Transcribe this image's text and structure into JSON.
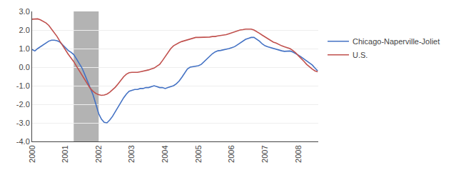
{
  "chart_data": {
    "type": "line",
    "x": [
      2000.0,
      2000.083,
      2000.167,
      2000.25,
      2000.333,
      2000.417,
      2000.5,
      2000.583,
      2000.667,
      2000.75,
      2000.833,
      2000.917,
      2001.0,
      2001.083,
      2001.167,
      2001.25,
      2001.333,
      2001.417,
      2001.5,
      2001.583,
      2001.667,
      2001.75,
      2001.833,
      2001.917,
      2002.0,
      2002.083,
      2002.167,
      2002.25,
      2002.333,
      2002.417,
      2002.5,
      2002.583,
      2002.667,
      2002.75,
      2002.833,
      2002.917,
      2003.0,
      2003.083,
      2003.167,
      2003.25,
      2003.333,
      2003.417,
      2003.5,
      2003.583,
      2003.667,
      2003.75,
      2003.833,
      2003.917,
      2004.0,
      2004.083,
      2004.167,
      2004.25,
      2004.333,
      2004.417,
      2004.5,
      2004.583,
      2004.667,
      2004.75,
      2004.833,
      2004.917,
      2005.0,
      2005.083,
      2005.167,
      2005.25,
      2005.333,
      2005.417,
      2005.5,
      2005.583,
      2005.667,
      2005.75,
      2005.833,
      2005.917,
      2006.0,
      2006.083,
      2006.167,
      2006.25,
      2006.333,
      2006.417,
      2006.5,
      2006.583,
      2006.667,
      2006.75,
      2006.833,
      2006.917,
      2007.0,
      2007.083,
      2007.167,
      2007.25,
      2007.333,
      2007.417,
      2007.5,
      2007.583,
      2007.667,
      2007.75,
      2007.833,
      2007.917,
      2008.0,
      2008.083,
      2008.167,
      2008.25,
      2008.333,
      2008.417,
      2008.5,
      2008.583
    ],
    "series": [
      {
        "name": "Chicago-Naperville-Joliet",
        "color": "#4472C4",
        "values": [
          0.95,
          0.87,
          1.0,
          1.1,
          1.2,
          1.3,
          1.4,
          1.45,
          1.45,
          1.42,
          1.35,
          1.2,
          1.05,
          0.9,
          0.8,
          0.68,
          0.45,
          0.2,
          -0.05,
          -0.4,
          -0.75,
          -1.1,
          -1.5,
          -2.0,
          -2.5,
          -2.8,
          -2.97,
          -3.0,
          -2.85,
          -2.65,
          -2.4,
          -2.1,
          -1.85,
          -1.65,
          -1.45,
          -1.3,
          -1.25,
          -1.2,
          -1.2,
          -1.15,
          -1.15,
          -1.1,
          -1.1,
          -1.05,
          -1.0,
          -1.05,
          -1.1,
          -1.1,
          -1.15,
          -1.1,
          -1.05,
          -1.0,
          -0.9,
          -0.75,
          -0.55,
          -0.3,
          -0.1,
          0.0,
          0.02,
          0.05,
          0.08,
          0.15,
          0.3,
          0.45,
          0.6,
          0.72,
          0.82,
          0.88,
          0.9,
          0.93,
          0.95,
          1.0,
          1.05,
          1.1,
          1.2,
          1.3,
          1.4,
          1.5,
          1.55,
          1.6,
          1.6,
          1.5,
          1.4,
          1.25,
          1.15,
          1.1,
          1.05,
          1.0,
          0.95,
          0.9,
          0.88,
          0.85,
          0.85,
          0.87,
          0.82,
          0.75,
          0.65,
          0.55,
          0.45,
          0.35,
          0.25,
          0.12,
          -0.05,
          -0.2
        ]
      },
      {
        "name": "U.S.",
        "color": "#C0504D",
        "values": [
          2.58,
          2.6,
          2.6,
          2.55,
          2.48,
          2.38,
          2.25,
          2.05,
          1.85,
          1.65,
          1.4,
          1.15,
          0.9,
          0.7,
          0.5,
          0.3,
          0.05,
          -0.2,
          -0.45,
          -0.7,
          -0.95,
          -1.15,
          -1.3,
          -1.42,
          -1.48,
          -1.52,
          -1.5,
          -1.45,
          -1.35,
          -1.22,
          -1.08,
          -0.9,
          -0.7,
          -0.52,
          -0.38,
          -0.3,
          -0.28,
          -0.28,
          -0.28,
          -0.25,
          -0.22,
          -0.18,
          -0.15,
          -0.1,
          -0.05,
          0.05,
          0.15,
          0.35,
          0.55,
          0.75,
          1.0,
          1.15,
          1.25,
          1.32,
          1.38,
          1.42,
          1.47,
          1.52,
          1.57,
          1.6,
          1.6,
          1.6,
          1.6,
          1.6,
          1.62,
          1.65,
          1.65,
          1.68,
          1.7,
          1.72,
          1.75,
          1.8,
          1.85,
          1.9,
          1.95,
          2.0,
          2.02,
          2.05,
          2.05,
          2.05,
          2.0,
          1.92,
          1.82,
          1.72,
          1.62,
          1.52,
          1.42,
          1.35,
          1.3,
          1.22,
          1.15,
          1.1,
          1.05,
          1.0,
          0.9,
          0.78,
          0.62,
          0.48,
          0.32,
          0.15,
          0.02,
          -0.1,
          -0.2,
          -0.25
        ]
      }
    ],
    "shaded_regions": [
      {
        "start": 2001.25,
        "end": 2002.0,
        "color": "#b3b3b3"
      }
    ],
    "xlim": [
      2000.0,
      2008.6
    ],
    "xticks": [
      2000,
      2001,
      2002,
      2003,
      2004,
      2005,
      2006,
      2007,
      2008
    ],
    "ylim": [
      -4.0,
      3.0
    ],
    "yticks": [
      {
        "value": -4.0,
        "label": "-4.0"
      },
      {
        "value": -3.0,
        "label": "-3.0"
      },
      {
        "value": -2.0,
        "label": "-2.0"
      },
      {
        "value": -1.0,
        "label": "-1.0"
      },
      {
        "value": 0.0,
        "label": "0.0"
      },
      {
        "value": 1.0,
        "label": "1.0"
      },
      {
        "value": 2.0,
        "label": "2.0"
      },
      {
        "value": 3.0,
        "label": "3.0"
      }
    ],
    "grid": "y",
    "legend": "right"
  }
}
